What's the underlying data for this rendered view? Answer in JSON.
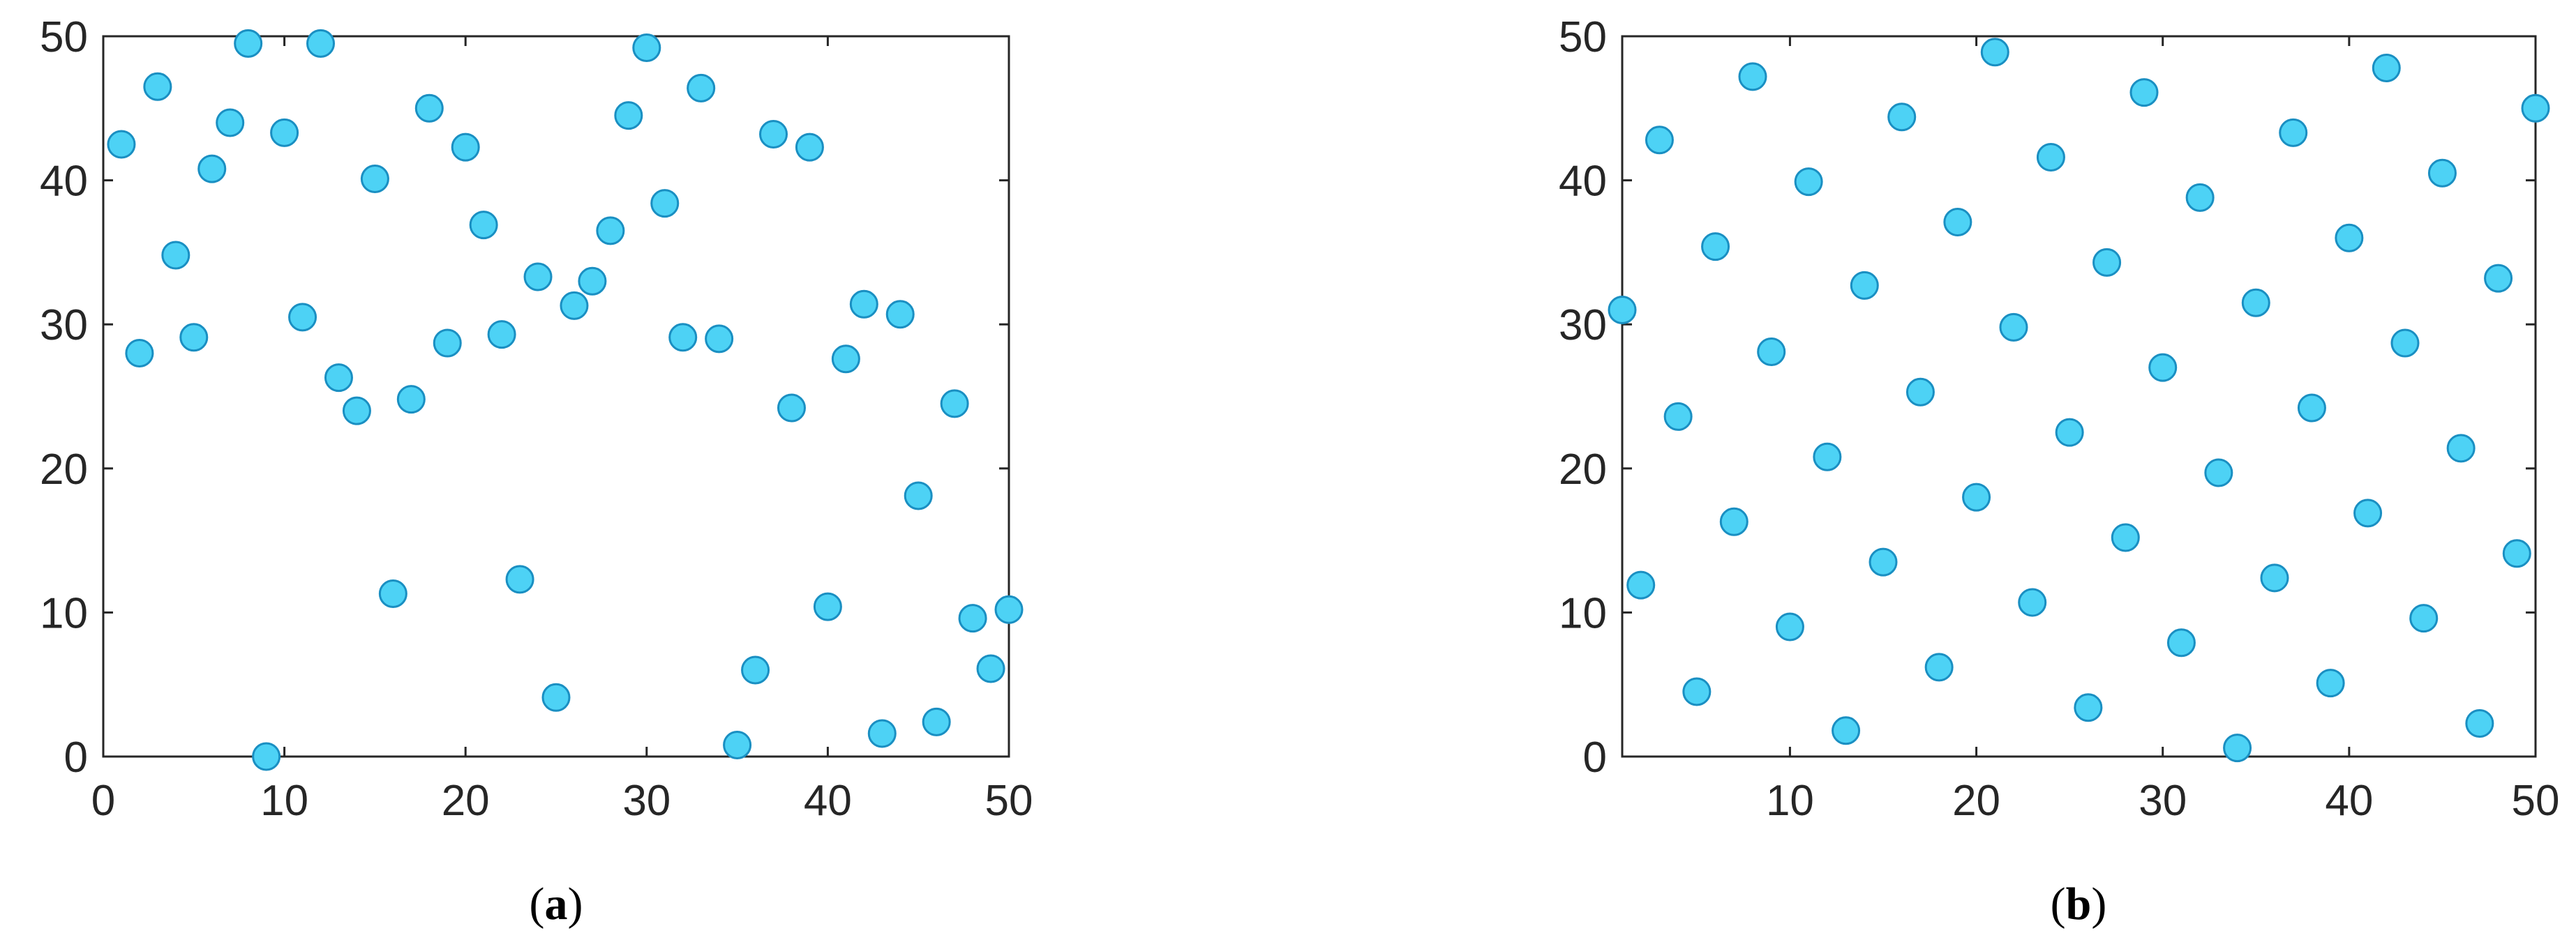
{
  "colors": {
    "marker_fill": "#4dd2f5",
    "marker_edge": "#1a8fc2",
    "axis": "#262626"
  },
  "chart_data": [
    {
      "type": "scatter",
      "caption_letter": "a",
      "xlim": [
        0,
        50
      ],
      "ylim": [
        0,
        50
      ],
      "xticks": [
        0,
        10,
        20,
        30,
        40,
        50
      ],
      "yticks": [
        0,
        10,
        20,
        30,
        40,
        50
      ],
      "grid": false,
      "points": [
        [
          1,
          42.5
        ],
        [
          2,
          28
        ],
        [
          3,
          46.5
        ],
        [
          4,
          34.8
        ],
        [
          5,
          29.1
        ],
        [
          6,
          40.8
        ],
        [
          7,
          44
        ],
        [
          8,
          49.5
        ],
        [
          9,
          0
        ],
        [
          10,
          43.3
        ],
        [
          11,
          30.5
        ],
        [
          12,
          49.5
        ],
        [
          13,
          26.3
        ],
        [
          14,
          24
        ],
        [
          15,
          40.1
        ],
        [
          16,
          11.3
        ],
        [
          17,
          24.8
        ],
        [
          18,
          45
        ],
        [
          19,
          28.7
        ],
        [
          20,
          42.3
        ],
        [
          21,
          36.9
        ],
        [
          22,
          29.3
        ],
        [
          23,
          12.3
        ],
        [
          24,
          33.3
        ],
        [
          25,
          4.1
        ],
        [
          26,
          31.3
        ],
        [
          27,
          33
        ],
        [
          28,
          36.5
        ],
        [
          29,
          44.5
        ],
        [
          30,
          49.2
        ],
        [
          31,
          38.4
        ],
        [
          32,
          29.1
        ],
        [
          33,
          46.4
        ],
        [
          34,
          29
        ],
        [
          35,
          0.8
        ],
        [
          36,
          6
        ],
        [
          37,
          43.2
        ],
        [
          38,
          24.2
        ],
        [
          39,
          42.3
        ],
        [
          40,
          10.4
        ],
        [
          41,
          27.6
        ],
        [
          42,
          31.4
        ],
        [
          43,
          1.6
        ],
        [
          44,
          30.7
        ],
        [
          45,
          18.1
        ],
        [
          46,
          2.4
        ],
        [
          47,
          24.5
        ],
        [
          48,
          9.6
        ],
        [
          49,
          6.1
        ],
        [
          50,
          10.2
        ]
      ]
    },
    {
      "type": "scatter",
      "caption_letter": "b",
      "xlim": [
        1,
        50
      ],
      "ylim": [
        0,
        50
      ],
      "xticks": [
        10,
        20,
        30,
        40,
        50
      ],
      "yticks": [
        0,
        10,
        20,
        30,
        40,
        50
      ],
      "grid": false,
      "points": [
        [
          1,
          31
        ],
        [
          2,
          11.9
        ],
        [
          3,
          42.8
        ],
        [
          4,
          23.6
        ],
        [
          5,
          4.5
        ],
        [
          6,
          35.4
        ],
        [
          7,
          16.3
        ],
        [
          8,
          47.2
        ],
        [
          9,
          28.1
        ],
        [
          10,
          9
        ],
        [
          11,
          39.9
        ],
        [
          12,
          20.8
        ],
        [
          13,
          1.8
        ],
        [
          14,
          32.7
        ],
        [
          15,
          13.5
        ],
        [
          16,
          44.4
        ],
        [
          17,
          25.3
        ],
        [
          18,
          6.2
        ],
        [
          19,
          37.1
        ],
        [
          20,
          18
        ],
        [
          21,
          48.9
        ],
        [
          22,
          29.8
        ],
        [
          23,
          10.7
        ],
        [
          24,
          41.6
        ],
        [
          25,
          22.5
        ],
        [
          26,
          3.4
        ],
        [
          27,
          34.3
        ],
        [
          28,
          15.2
        ],
        [
          29,
          46.1
        ],
        [
          30,
          27
        ],
        [
          31,
          7.9
        ],
        [
          32,
          38.8
        ],
        [
          33,
          19.7
        ],
        [
          34,
          0.6
        ],
        [
          35,
          31.5
        ],
        [
          36,
          12.4
        ],
        [
          37,
          43.3
        ],
        [
          38,
          24.2
        ],
        [
          39,
          5.1
        ],
        [
          40,
          36
        ],
        [
          41,
          16.9
        ],
        [
          42,
          47.8
        ],
        [
          43,
          28.7
        ],
        [
          44,
          9.6
        ],
        [
          45,
          40.5
        ],
        [
          46,
          21.4
        ],
        [
          47,
          2.3
        ],
        [
          48,
          33.2
        ],
        [
          49,
          14.1
        ],
        [
          50,
          45
        ]
      ]
    }
  ]
}
